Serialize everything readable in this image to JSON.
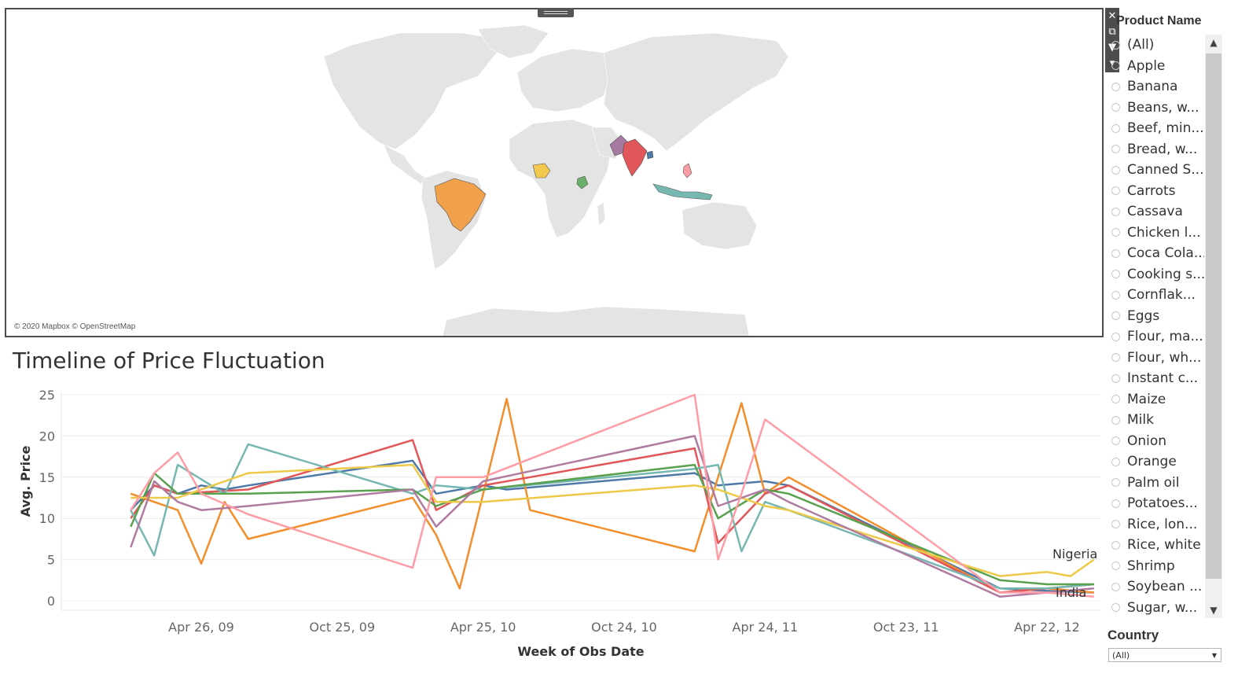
{
  "map": {
    "credit": "© 2020 Mapbox © OpenStreetMap",
    "land_color": "#e4e4e4",
    "highlighted_countries": [
      {
        "name": "Brazil",
        "color": "#f1a14b"
      },
      {
        "name": "Nigeria",
        "color": "#f2c94c"
      },
      {
        "name": "Kenya",
        "color": "#6ab06a"
      },
      {
        "name": "Pakistan",
        "color": "#a67aa3"
      },
      {
        "name": "India",
        "color": "#e15759"
      },
      {
        "name": "Bangladesh",
        "color": "#4e79a7"
      },
      {
        "name": "Indonesia",
        "color": "#76b7b2"
      },
      {
        "name": "Philippines",
        "color": "#ff9da7"
      }
    ],
    "tools": [
      {
        "name": "close-icon",
        "glyph": "✕"
      },
      {
        "name": "popout-icon",
        "glyph": "⧉"
      },
      {
        "name": "filter-icon",
        "glyph": "▼"
      },
      {
        "name": "more-options-icon",
        "glyph": "▾"
      }
    ]
  },
  "filters": {
    "product_title": "Product Name",
    "products": [
      "(All)",
      "Apple",
      "Banana",
      "Beans, w...",
      "Beef, min...",
      "Bread, w...",
      "Canned S...",
      "Carrots",
      "Cassava",
      "Chicken l...",
      "Coca Cola...",
      "Cooking s...",
      "Cornflak...",
      "Eggs",
      "Flour, ma...",
      "Flour, wh...",
      "Instant c...",
      "Maize",
      "Milk",
      "Onion",
      "Orange",
      "Palm oil",
      "Potatoes...",
      "Rice, lon...",
      "Rice, white",
      "Shrimp",
      "Soybean ...",
      "Sugar, w..."
    ],
    "country_title": "Country",
    "country_selected": "(All)"
  },
  "chart_data": {
    "type": "line",
    "title": "Timeline of Price Fluctuation",
    "xlabel": "Week of Obs Date",
    "ylabel": "Avg. Price",
    "ylim": [
      0,
      25
    ],
    "yticks": [
      0,
      5,
      10,
      15,
      20,
      25
    ],
    "xticks": [
      "Apr 26, 09",
      "Oct 25, 09",
      "Apr 25, 10",
      "Oct 24, 10",
      "Apr 24, 11",
      "Oct 23, 11",
      "Apr 22, 12"
    ],
    "grid": true,
    "end_labels": [
      "Nigeria",
      "India"
    ],
    "series": [
      {
        "color": "#4e79a7",
        "points": [
          [
            "Jan 2009",
            11
          ],
          [
            "Feb 2009",
            14
          ],
          [
            "Mar 2009",
            13
          ],
          [
            "Apr 2009",
            14
          ],
          [
            "May 2009",
            13.5
          ],
          [
            "Jun 2009",
            14
          ],
          [
            "Jan 2010",
            17
          ],
          [
            "Feb 2010",
            13
          ],
          [
            "Apr 2010",
            14
          ],
          [
            "May 2010",
            13.5
          ],
          [
            "Jan 2011",
            15.5
          ],
          [
            "Feb 2011",
            14
          ],
          [
            "Apr 2011",
            14.5
          ],
          [
            "May 2011",
            14
          ],
          [
            "Feb 2012",
            1.5
          ],
          [
            "Apr 2012",
            1.2
          ],
          [
            "Jun 2012",
            1
          ]
        ]
      },
      {
        "color": "#f28e2b",
        "points": [
          [
            "Jan 2009",
            13
          ],
          [
            "Mar 2009",
            11
          ],
          [
            "Apr 2009",
            4.5
          ],
          [
            "May 2009",
            12
          ],
          [
            "Jun 2009",
            7.5
          ],
          [
            "Jan 2010",
            12.5
          ],
          [
            "Feb 2010",
            8
          ],
          [
            "Mar 2010",
            1.5
          ],
          [
            "Apr 2010",
            13
          ],
          [
            "May 2010",
            24.5
          ],
          [
            "Jun 2010",
            11
          ],
          [
            "Jan 2011",
            6
          ],
          [
            "Feb 2011",
            15
          ],
          [
            "Mar 2011",
            24
          ],
          [
            "Apr 2011",
            13
          ],
          [
            "May 2011",
            15
          ],
          [
            "Feb 2012",
            1
          ],
          [
            "Apr 2012",
            1.5
          ],
          [
            "Jun 2012",
            1
          ]
        ]
      },
      {
        "color": "#e15759",
        "points": [
          [
            "Jan 2009",
            10
          ],
          [
            "Feb 2009",
            14
          ],
          [
            "Mar 2009",
            13
          ],
          [
            "Jun 2009",
            13.5
          ],
          [
            "Jan 2010",
            19.5
          ],
          [
            "Feb 2010",
            11
          ],
          [
            "Apr 2010",
            14
          ],
          [
            "Jan 2011",
            18.5
          ],
          [
            "Feb 2011",
            7
          ],
          [
            "Apr 2011",
            13
          ],
          [
            "May 2011",
            14
          ],
          [
            "Feb 2012",
            1
          ],
          [
            "Apr 2012",
            1.5
          ],
          [
            "Jun 2012",
            2
          ]
        ]
      },
      {
        "color": "#76b7b2",
        "points": [
          [
            "Jan 2009",
            11
          ],
          [
            "Feb 2009",
            5.5
          ],
          [
            "Mar 2009",
            16.5
          ],
          [
            "May 2009",
            13
          ],
          [
            "Jun 2009",
            19
          ],
          [
            "Jan 2010",
            13
          ],
          [
            "Feb 2010",
            14
          ],
          [
            "Apr 2010",
            13.5
          ],
          [
            "Jan 2011",
            16
          ],
          [
            "Feb 2011",
            16.5
          ],
          [
            "Mar 2011",
            6
          ],
          [
            "Apr 2011",
            12
          ],
          [
            "May 2011",
            11
          ],
          [
            "Feb 2012",
            1.5
          ],
          [
            "Apr 2012",
            1.5
          ],
          [
            "Jun 2012",
            2
          ]
        ]
      },
      {
        "color": "#59a14f",
        "points": [
          [
            "Jan 2009",
            9
          ],
          [
            "Feb 2009",
            15.5
          ],
          [
            "Mar 2009",
            13
          ],
          [
            "Jun 2009",
            13
          ],
          [
            "Jan 2010",
            13.5
          ],
          [
            "Feb 2010",
            11.5
          ],
          [
            "Apr 2010",
            13.5
          ],
          [
            "Jan 2011",
            16.5
          ],
          [
            "Feb 2011",
            10
          ],
          [
            "Apr 2011",
            13.5
          ],
          [
            "May 2011",
            13
          ],
          [
            "Feb 2012",
            2.5
          ],
          [
            "Apr 2012",
            2
          ],
          [
            "Jun 2012",
            2
          ]
        ]
      },
      {
        "color": "#edc948",
        "points": [
          [
            "Jan 2009",
            12.5
          ],
          [
            "Mar 2009",
            12.5
          ],
          [
            "Jun 2009",
            15.5
          ],
          [
            "Jan 2010",
            16.5
          ],
          [
            "Feb 2010",
            12
          ],
          [
            "Apr 2010",
            12
          ],
          [
            "Jan 2011",
            14
          ],
          [
            "Feb 2011",
            13.5
          ],
          [
            "Apr 2011",
            11.5
          ],
          [
            "May 2011",
            11
          ],
          [
            "Feb 2012",
            3
          ],
          [
            "Apr 2012",
            3.5
          ],
          [
            "May 2012",
            3
          ],
          [
            "Jun 2012",
            5
          ]
        ]
      },
      {
        "color": "#b07aa1",
        "points": [
          [
            "Jan 2009",
            6.5
          ],
          [
            "Feb 2009",
            14.5
          ],
          [
            "Mar 2009",
            12
          ],
          [
            "Apr 2009",
            11
          ],
          [
            "Jun 2009",
            11.5
          ],
          [
            "Jan 2010",
            13.5
          ],
          [
            "Feb 2010",
            9
          ],
          [
            "Apr 2010",
            14.5
          ],
          [
            "Jan 2011",
            20
          ],
          [
            "Feb 2011",
            11.5
          ],
          [
            "Apr 2011",
            13.5
          ],
          [
            "May 2011",
            12
          ],
          [
            "Feb 2012",
            0.5
          ],
          [
            "Apr 2012",
            1
          ],
          [
            "Jun 2012",
            1.5
          ]
        ]
      },
      {
        "color": "#ff9da7",
        "points": [
          [
            "Jan 2009",
            11
          ],
          [
            "Feb 2009",
            15.5
          ],
          [
            "Mar 2009",
            18
          ],
          [
            "Apr 2009",
            13
          ],
          [
            "Jun 2009",
            10.5
          ],
          [
            "Jan 2010",
            4
          ],
          [
            "Feb 2010",
            15
          ],
          [
            "Apr 2010",
            15
          ],
          [
            "Jan 2011",
            25
          ],
          [
            "Feb 2011",
            5
          ],
          [
            "Mar 2011",
            13
          ],
          [
            "Apr 2011",
            22
          ],
          [
            "Feb 2012",
            1
          ],
          [
            "Apr 2012",
            1
          ],
          [
            "Jun 2012",
            0.5
          ]
        ]
      }
    ]
  }
}
